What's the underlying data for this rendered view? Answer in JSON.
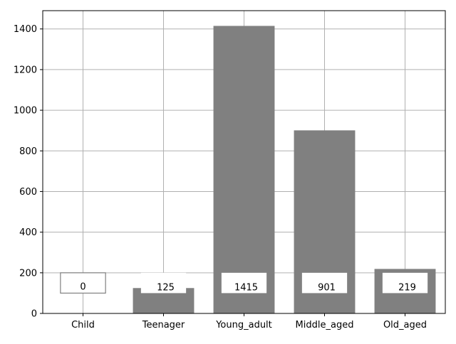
{
  "chart_data": {
    "type": "bar",
    "categories": [
      "Child",
      "Teenager",
      "Young_adult",
      "Middle_aged",
      "Old_aged"
    ],
    "values": [
      0,
      125,
      1415,
      901,
      219
    ],
    "data_labels": [
      "0",
      "125",
      "1415",
      "901",
      "219"
    ],
    "ylim": [
      0,
      1490
    ],
    "yticks": [
      0,
      200,
      400,
      600,
      800,
      1000,
      1200,
      1400
    ],
    "grid": true,
    "bar_color": "#808080",
    "grid_color": "#b0b0b0",
    "label_box_color": "#ffffff",
    "label_box_edge_color": "#808080",
    "label_box_y_range": [
      100,
      200
    ]
  }
}
